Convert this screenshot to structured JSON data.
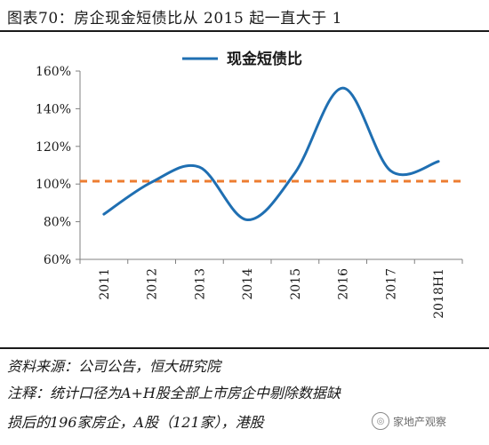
{
  "figure": {
    "title": "图表70：房企现金短债比从 2015 起一直大于 1"
  },
  "chart_data": {
    "type": "line",
    "categories": [
      "2011",
      "2012",
      "2013",
      "2014",
      "2015",
      "2016",
      "2017",
      "2018H1"
    ],
    "series": [
      {
        "name": "现金短债比",
        "color": "#1f6fb2",
        "values": [
          84,
          101,
          109,
          81,
          106,
          151,
          107,
          112
        ]
      }
    ],
    "reference_line": {
      "value": 101.5,
      "color": "#ed7d31",
      "style": "dashed"
    },
    "ylim": [
      60,
      160
    ],
    "yticks": [
      60,
      80,
      100,
      120,
      140,
      160
    ],
    "ytick_labels": [
      "60%",
      "80%",
      "100%",
      "120%",
      "140%",
      "160%"
    ],
    "legend_position": "top-center",
    "grid": false,
    "line_style": "smooth"
  },
  "notes": {
    "source": "资料来源：公司公告，恒大研究院",
    "line1": "注释：统计口径为A+H股全部上市房企中剔除数据缺",
    "line2": "损后的196家房企，A股（121家），港股"
  },
  "watermark": {
    "text": "家地产观察"
  }
}
